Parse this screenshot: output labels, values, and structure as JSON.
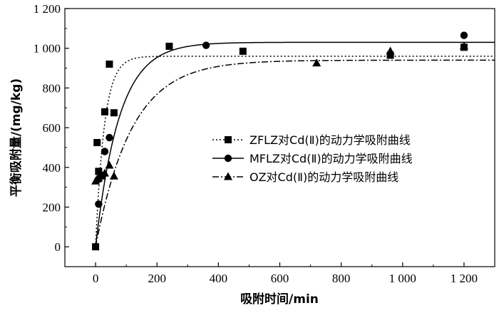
{
  "chart_data": {
    "type": "scatter",
    "xlabel": "吸附时间/min",
    "ylabel": "平衡吸附量/(mg/kg)",
    "xlim": [
      -100,
      1300
    ],
    "ylim": [
      -100,
      1200
    ],
    "xticks": [
      0,
      200,
      400,
      600,
      800,
      1000,
      1200
    ],
    "xtick_labels": [
      "0",
      "200",
      "400",
      "600",
      "800",
      "1 000",
      "1 200"
    ],
    "yticks": [
      0,
      200,
      400,
      600,
      800,
      1000,
      1200
    ],
    "ytick_labels": [
      "0",
      "200",
      "400",
      "600",
      "800",
      "1 000",
      "1 200"
    ],
    "grid": false,
    "legend_position": "center-right",
    "series": [
      {
        "name": "ZFLZ对Cd(Ⅱ)的动力学吸附曲线",
        "marker": "square",
        "line_style": "dotted",
        "x": [
          0,
          5,
          10,
          20,
          30,
          45,
          60,
          240,
          480,
          960,
          1200
        ],
        "y": [
          0,
          525,
          380,
          360,
          680,
          920,
          675,
          1010,
          985,
          965,
          1005
        ],
        "fit": {
          "qe": 960,
          "k": 0.035
        }
      },
      {
        "name": "MFLZ对Cd(Ⅱ)的动力学吸附曲线",
        "marker": "circle",
        "line_style": "solid",
        "x": [
          10,
          20,
          30,
          45,
          360,
          1200
        ],
        "y": [
          215,
          360,
          480,
          550,
          1015,
          1065
        ],
        "fit": {
          "qe": 1030,
          "k": 0.013
        }
      },
      {
        "name": "OZ对Cd(Ⅱ)的动力学吸附曲线",
        "marker": "triangle",
        "line_style": "dashdot",
        "x": [
          0,
          5,
          10,
          20,
          30,
          45,
          60,
          720,
          960,
          1200
        ],
        "y": [
          330,
          340,
          345,
          355,
          370,
          410,
          355,
          925,
          985,
          1010
        ],
        "fit": {
          "qe": 940,
          "k": 0.0085
        }
      }
    ]
  }
}
